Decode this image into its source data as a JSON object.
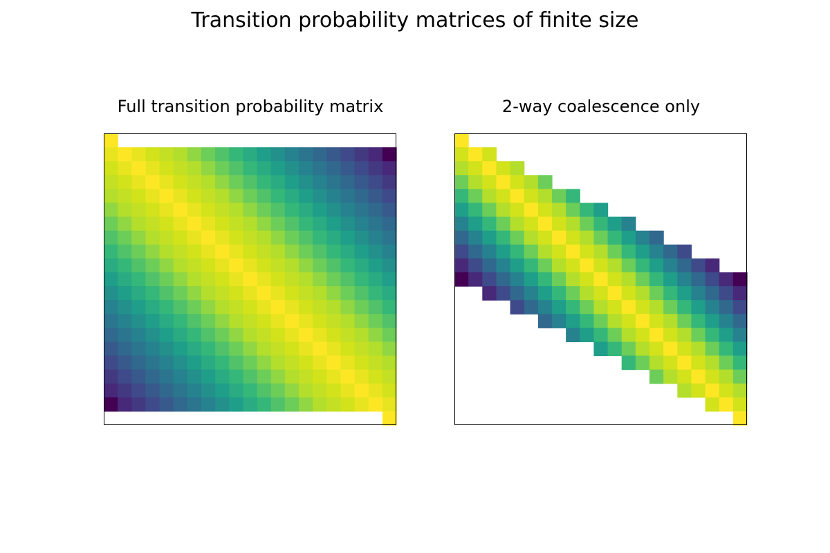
{
  "figure": {
    "title": "Transition probability matrices of finite size"
  },
  "chart_data": [
    {
      "type": "heatmap",
      "title": "Full transition probability matrix",
      "rows": 21,
      "cols": 21,
      "xlabel": "",
      "ylabel": "",
      "axis_ticks": "none",
      "colormap": "viridis",
      "empty_cell_color": "#ffffff",
      "description_rule": "Row 0 and row 20 are absorbing (only the diagonal cell is filled, value 1). Interior rows i=1..19 are fully filled; the relative value peaks at the diagonal and decays with distance from it.",
      "values": [
        [
          1,
          null,
          null,
          null,
          null,
          null,
          null,
          null,
          null,
          null,
          null,
          null,
          null,
          null,
          null,
          null,
          null,
          null,
          null,
          null,
          null
        ],
        [
          0.95,
          1,
          0.95,
          0.9,
          0.85,
          0.8,
          0.75,
          0.7,
          0.65,
          0.6,
          0.55,
          0.5,
          0.45,
          0.4,
          0.35,
          0.3,
          0.25,
          0.2,
          0.15,
          0.1,
          0
        ],
        [
          0.9,
          0.95,
          1,
          0.95,
          0.9,
          0.85,
          0.8,
          0.75,
          0.7,
          0.65,
          0.6,
          0.55,
          0.5,
          0.45,
          0.4,
          0.35,
          0.3,
          0.25,
          0.2,
          0.15,
          0.1
        ],
        [
          0.85,
          0.9,
          0.95,
          1,
          0.95,
          0.9,
          0.85,
          0.8,
          0.75,
          0.7,
          0.65,
          0.6,
          0.55,
          0.5,
          0.45,
          0.4,
          0.35,
          0.3,
          0.25,
          0.2,
          0.15
        ],
        [
          0.8,
          0.85,
          0.9,
          0.95,
          1,
          0.95,
          0.9,
          0.85,
          0.8,
          0.75,
          0.7,
          0.65,
          0.6,
          0.55,
          0.5,
          0.45,
          0.4,
          0.35,
          0.3,
          0.25,
          0.2
        ],
        [
          0.75,
          0.8,
          0.85,
          0.9,
          0.95,
          1,
          0.95,
          0.9,
          0.85,
          0.8,
          0.75,
          0.7,
          0.65,
          0.6,
          0.55,
          0.5,
          0.45,
          0.4,
          0.35,
          0.3,
          0.25
        ],
        [
          0.7,
          0.75,
          0.8,
          0.85,
          0.9,
          0.95,
          1,
          0.95,
          0.9,
          0.85,
          0.8,
          0.75,
          0.7,
          0.65,
          0.6,
          0.55,
          0.5,
          0.45,
          0.4,
          0.35,
          0.3
        ],
        [
          0.65,
          0.7,
          0.75,
          0.8,
          0.85,
          0.9,
          0.95,
          1,
          0.95,
          0.9,
          0.85,
          0.8,
          0.75,
          0.7,
          0.65,
          0.6,
          0.55,
          0.5,
          0.45,
          0.4,
          0.35
        ],
        [
          0.6,
          0.65,
          0.7,
          0.75,
          0.8,
          0.85,
          0.9,
          0.95,
          1,
          0.95,
          0.9,
          0.85,
          0.8,
          0.75,
          0.7,
          0.65,
          0.6,
          0.55,
          0.5,
          0.45,
          0.4
        ],
        [
          0.55,
          0.6,
          0.65,
          0.7,
          0.75,
          0.8,
          0.85,
          0.9,
          0.95,
          1,
          0.95,
          0.9,
          0.85,
          0.8,
          0.75,
          0.7,
          0.65,
          0.6,
          0.55,
          0.5,
          0.45
        ],
        [
          0.5,
          0.55,
          0.6,
          0.65,
          0.7,
          0.75,
          0.8,
          0.85,
          0.9,
          0.95,
          1,
          0.95,
          0.9,
          0.85,
          0.8,
          0.75,
          0.7,
          0.65,
          0.6,
          0.55,
          0.5
        ],
        [
          0.45,
          0.5,
          0.55,
          0.6,
          0.65,
          0.7,
          0.75,
          0.8,
          0.85,
          0.9,
          0.95,
          1,
          0.95,
          0.9,
          0.85,
          0.8,
          0.75,
          0.7,
          0.65,
          0.6,
          0.55
        ],
        [
          0.4,
          0.45,
          0.5,
          0.55,
          0.6,
          0.65,
          0.7,
          0.75,
          0.8,
          0.85,
          0.9,
          0.95,
          1,
          0.95,
          0.9,
          0.85,
          0.8,
          0.75,
          0.7,
          0.65,
          0.6
        ],
        [
          0.35,
          0.4,
          0.45,
          0.5,
          0.55,
          0.6,
          0.65,
          0.7,
          0.75,
          0.8,
          0.85,
          0.9,
          0.95,
          1,
          0.95,
          0.9,
          0.85,
          0.8,
          0.75,
          0.7,
          0.65
        ],
        [
          0.3,
          0.35,
          0.4,
          0.45,
          0.5,
          0.55,
          0.6,
          0.65,
          0.7,
          0.75,
          0.8,
          0.85,
          0.9,
          0.95,
          1,
          0.95,
          0.9,
          0.85,
          0.8,
          0.75,
          0.7
        ],
        [
          0.25,
          0.3,
          0.35,
          0.4,
          0.45,
          0.5,
          0.55,
          0.6,
          0.65,
          0.7,
          0.75,
          0.8,
          0.85,
          0.9,
          0.95,
          1,
          0.95,
          0.9,
          0.85,
          0.8,
          0.75
        ],
        [
          0.2,
          0.25,
          0.3,
          0.35,
          0.4,
          0.45,
          0.5,
          0.55,
          0.6,
          0.65,
          0.7,
          0.75,
          0.8,
          0.85,
          0.9,
          0.95,
          1,
          0.95,
          0.9,
          0.85,
          0.8
        ],
        [
          0.15,
          0.2,
          0.25,
          0.3,
          0.35,
          0.4,
          0.45,
          0.5,
          0.55,
          0.6,
          0.65,
          0.7,
          0.75,
          0.8,
          0.85,
          0.9,
          0.95,
          1,
          0.95,
          0.9,
          0.85
        ],
        [
          0.1,
          0.15,
          0.2,
          0.25,
          0.3,
          0.35,
          0.4,
          0.45,
          0.5,
          0.55,
          0.6,
          0.65,
          0.7,
          0.75,
          0.8,
          0.85,
          0.9,
          0.95,
          1,
          0.95,
          0.9
        ],
        [
          0,
          0.1,
          0.15,
          0.2,
          0.25,
          0.3,
          0.35,
          0.4,
          0.45,
          0.5,
          0.55,
          0.6,
          0.65,
          0.7,
          0.75,
          0.8,
          0.85,
          0.9,
          0.95,
          1,
          0.95
        ],
        [
          null,
          null,
          null,
          null,
          null,
          null,
          null,
          null,
          null,
          null,
          null,
          null,
          null,
          null,
          null,
          null,
          null,
          null,
          null,
          null,
          1
        ]
      ]
    },
    {
      "type": "heatmap",
      "title": "2-way coalescence only",
      "rows": 21,
      "cols": 21,
      "xlabel": "",
      "ylabel": "",
      "axis_ticks": "none",
      "colormap": "viridis",
      "empty_cell_color": "#ffffff",
      "description_rule": "Row 0 and row 20 are absorbing. For interior row i, non-empty cells span columns max(0, 2i-20) .. min(20, 2i); relative value peaks at column i and decays with distance from it.",
      "values": [
        [
          1,
          null,
          null,
          null,
          null,
          null,
          null,
          null,
          null,
          null,
          null,
          null,
          null,
          null,
          null,
          null,
          null,
          null,
          null,
          null,
          null
        ],
        [
          0.9,
          1,
          0.9,
          null,
          null,
          null,
          null,
          null,
          null,
          null,
          null,
          null,
          null,
          null,
          null,
          null,
          null,
          null,
          null,
          null,
          null
        ],
        [
          0.8,
          0.9,
          1,
          0.9,
          0.8,
          null,
          null,
          null,
          null,
          null,
          null,
          null,
          null,
          null,
          null,
          null,
          null,
          null,
          null,
          null,
          null
        ],
        [
          0.7,
          0.8,
          0.9,
          1,
          0.9,
          0.8,
          0.7,
          null,
          null,
          null,
          null,
          null,
          null,
          null,
          null,
          null,
          null,
          null,
          null,
          null,
          null
        ],
        [
          0.6,
          0.7,
          0.8,
          0.9,
          1,
          0.9,
          0.8,
          0.7,
          0.6,
          null,
          null,
          null,
          null,
          null,
          null,
          null,
          null,
          null,
          null,
          null,
          null
        ],
        [
          0.5,
          0.6,
          0.7,
          0.8,
          0.9,
          1,
          0.9,
          0.8,
          0.7,
          0.6,
          0.5,
          null,
          null,
          null,
          null,
          null,
          null,
          null,
          null,
          null,
          null
        ],
        [
          0.4,
          0.5,
          0.6,
          0.7,
          0.8,
          0.9,
          1,
          0.9,
          0.8,
          0.7,
          0.6,
          0.5,
          0.4,
          null,
          null,
          null,
          null,
          null,
          null,
          null,
          null
        ],
        [
          0.3,
          0.4,
          0.5,
          0.6,
          0.7,
          0.8,
          0.9,
          1,
          0.9,
          0.8,
          0.7,
          0.6,
          0.5,
          0.4,
          0.3,
          null,
          null,
          null,
          null,
          null,
          null
        ],
        [
          0.2,
          0.3,
          0.4,
          0.5,
          0.6,
          0.7,
          0.8,
          0.9,
          1,
          0.9,
          0.8,
          0.7,
          0.6,
          0.5,
          0.4,
          0.3,
          0.2,
          null,
          null,
          null,
          null
        ],
        [
          0.1,
          0.2,
          0.3,
          0.4,
          0.5,
          0.6,
          0.7,
          0.8,
          0.9,
          1,
          0.9,
          0.8,
          0.7,
          0.6,
          0.5,
          0.4,
          0.3,
          0.2,
          0.1,
          null,
          null
        ],
        [
          0,
          0.1,
          0.2,
          0.3,
          0.4,
          0.5,
          0.6,
          0.7,
          0.8,
          0.9,
          1,
          0.9,
          0.8,
          0.7,
          0.6,
          0.5,
          0.4,
          0.3,
          0.2,
          0.1,
          0
        ],
        [
          null,
          null,
          0.1,
          0.2,
          0.3,
          0.4,
          0.5,
          0.6,
          0.7,
          0.8,
          0.9,
          1,
          0.9,
          0.8,
          0.7,
          0.6,
          0.5,
          0.4,
          0.3,
          0.2,
          0.1
        ],
        [
          null,
          null,
          null,
          null,
          0.2,
          0.3,
          0.4,
          0.5,
          0.6,
          0.7,
          0.8,
          0.9,
          1,
          0.9,
          0.8,
          0.7,
          0.6,
          0.5,
          0.4,
          0.3,
          0.2
        ],
        [
          null,
          null,
          null,
          null,
          null,
          null,
          0.3,
          0.4,
          0.5,
          0.6,
          0.7,
          0.8,
          0.9,
          1,
          0.9,
          0.8,
          0.7,
          0.6,
          0.5,
          0.4,
          0.3
        ],
        [
          null,
          null,
          null,
          null,
          null,
          null,
          null,
          null,
          0.4,
          0.5,
          0.6,
          0.7,
          0.8,
          0.9,
          1,
          0.9,
          0.8,
          0.7,
          0.6,
          0.5,
          0.4
        ],
        [
          null,
          null,
          null,
          null,
          null,
          null,
          null,
          null,
          null,
          null,
          0.5,
          0.6,
          0.7,
          0.8,
          0.9,
          1,
          0.9,
          0.8,
          0.7,
          0.6,
          0.5
        ],
        [
          null,
          null,
          null,
          null,
          null,
          null,
          null,
          null,
          null,
          null,
          null,
          null,
          0.6,
          0.7,
          0.8,
          0.9,
          1,
          0.9,
          0.8,
          0.7,
          0.6
        ],
        [
          null,
          null,
          null,
          null,
          null,
          null,
          null,
          null,
          null,
          null,
          null,
          null,
          null,
          null,
          0.7,
          0.8,
          0.9,
          1,
          0.9,
          0.8,
          0.7
        ],
        [
          null,
          null,
          null,
          null,
          null,
          null,
          null,
          null,
          null,
          null,
          null,
          null,
          null,
          null,
          null,
          null,
          0.8,
          0.9,
          1,
          0.9,
          0.8
        ],
        [
          null,
          null,
          null,
          null,
          null,
          null,
          null,
          null,
          null,
          null,
          null,
          null,
          null,
          null,
          null,
          null,
          null,
          null,
          0.9,
          1,
          0.9
        ],
        [
          null,
          null,
          null,
          null,
          null,
          null,
          null,
          null,
          null,
          null,
          null,
          null,
          null,
          null,
          null,
          null,
          null,
          null,
          null,
          null,
          1
        ]
      ]
    }
  ]
}
